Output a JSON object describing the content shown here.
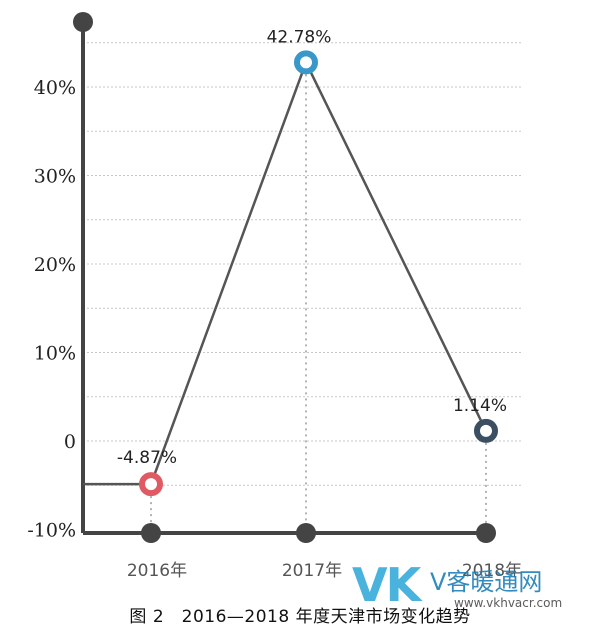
{
  "chart_data": {
    "type": "line",
    "categories": [
      "2016年",
      "2017年",
      "2018年"
    ],
    "values": [
      -4.87,
      42.78,
      1.14
    ],
    "data_labels": [
      "-4.87%",
      "42.78%",
      "1.14%"
    ],
    "point_colors": [
      "#e05a63",
      "#3a97c9",
      "#3a4f62"
    ],
    "line_color": "#555555",
    "yticks": [
      {
        "value": 40,
        "label": "40%"
      },
      {
        "value": 30,
        "label": "30%"
      },
      {
        "value": 20,
        "label": "20%"
      },
      {
        "value": 10,
        "label": "10%"
      },
      {
        "value": 0,
        "label": "0"
      },
      {
        "value": -10,
        "label": "-10%"
      }
    ],
    "ylim": [
      -10,
      50
    ],
    "grid": true
  },
  "caption": "图 2　2016—2018 年度天津市场变化趋势",
  "watermark": {
    "logo": "VK",
    "name": "V客暖通网",
    "url": "www.vkhvacr.com"
  }
}
